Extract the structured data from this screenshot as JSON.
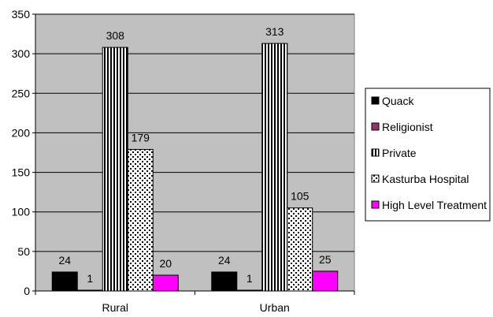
{
  "chart_data": {
    "type": "bar",
    "categories": [
      "Rural",
      "Urban"
    ],
    "series": [
      {
        "name": "Quack",
        "values": [
          24,
          24
        ],
        "color": "#000000",
        "pattern": "solid"
      },
      {
        "name": "Religionist",
        "values": [
          1,
          1
        ],
        "color": "#993366",
        "pattern": "solid"
      },
      {
        "name": "Private",
        "values": [
          308,
          313
        ],
        "color": "#000000",
        "pattern": "vertical-stripes"
      },
      {
        "name": "Kasturba Hospital",
        "values": [
          179,
          105
        ],
        "color": "#000000",
        "pattern": "dots"
      },
      {
        "name": "High Level Treatment",
        "values": [
          20,
          25
        ],
        "color": "#ff00ff",
        "pattern": "solid"
      }
    ],
    "data_labels": [
      [
        "24",
        "24"
      ],
      [
        "1",
        "1"
      ],
      [
        "308",
        "313"
      ],
      [
        "179",
        "105"
      ],
      [
        "20",
        "25"
      ]
    ],
    "ylim": [
      0,
      350
    ],
    "yticks": [
      0,
      50,
      100,
      150,
      200,
      250,
      300,
      350
    ],
    "ytick_labels": [
      "0",
      "50",
      "100",
      "150",
      "200",
      "250",
      "300",
      "350"
    ],
    "grid": true,
    "plot_background": "#c0c0c0",
    "legend_position": "right",
    "title": "",
    "xlabel": "",
    "ylabel": ""
  }
}
